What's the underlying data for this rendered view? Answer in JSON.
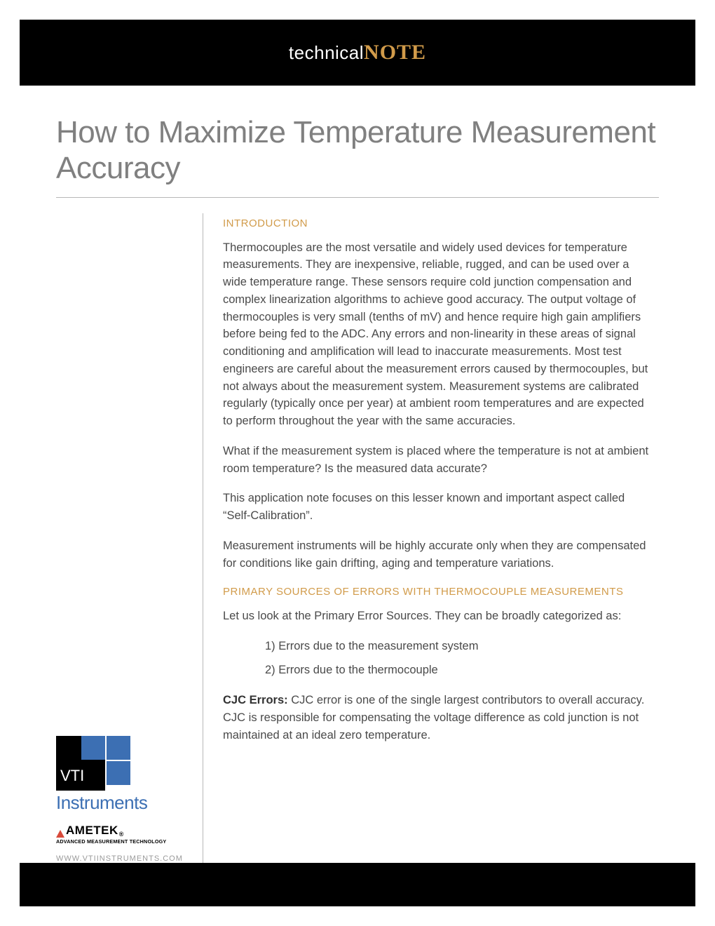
{
  "colors": {
    "accent": "#d19b4a",
    "body_text": "#4a4a4a",
    "title_text": "#808080",
    "rule": "#b8b8b8",
    "vti_blue": "#3c6fb3",
    "url_gray": "#9a9a9a",
    "ametek_red": "#d84a3a"
  },
  "banner": {
    "prefix": "technical",
    "suffix": "NOTE"
  },
  "title": "How to Maximize Temperature Measurement Accuracy",
  "sections": {
    "intro": {
      "heading": "INTRODUCTION",
      "p1": "Thermocouples are the most versatile and widely used devices for temperature measurements. They are inexpensive, reliable, rugged, and can be used over a wide temperature range. These sensors require cold junction compensation and complex linearization algorithms to achieve good accuracy. The output voltage of thermocouples is very small (tenths of mV) and hence require high gain amplifiers before being fed to the ADC.  Any errors and non-linearity in these areas of signal conditioning and amplification will lead to inaccurate measurements. Most test engineers are careful about the measurement errors caused by thermocouples, but not always about the measurement system. Measurement systems are calibrated regularly (typically once per year) at ambient room temperatures and are expected to perform throughout the year with the same accuracies.",
      "p2": "What if the measurement system is placed where the temperature is not at ambient room temperature? Is the measured data accurate?",
      "p3": "This application note focuses on this lesser known and important aspect called “Self-Calibration”.",
      "p4": "Measurement instruments will be highly accurate only when they are compensated for conditions like gain drifting, aging and temperature variations."
    },
    "errors": {
      "heading": "PRIMARY SOURCES OF ERRORS WITH THERMOCOUPLE MEASUREMENTS",
      "lead": "Let us look at the Primary Error Sources. They can be broadly categorized as:",
      "items": [
        "1) Errors due to the measurement system",
        "2) Errors due to the thermocouple"
      ],
      "cjc_label": "CJC Errors:",
      "cjc_text": "  CJC error is one of the single largest contributors to overall accuracy. CJC is responsible for compensating the voltage difference as cold junction is not maintained at an ideal zero temperature."
    }
  },
  "logo": {
    "vti": "VTI",
    "instruments": "Instruments",
    "ametek": "AMETEK",
    "ametek_reg": "®",
    "ametek_tag": "ADVANCED MEASUREMENT TECHNOLOGY",
    "url": "WWW.VTIINSTRUMENTS.COM"
  }
}
